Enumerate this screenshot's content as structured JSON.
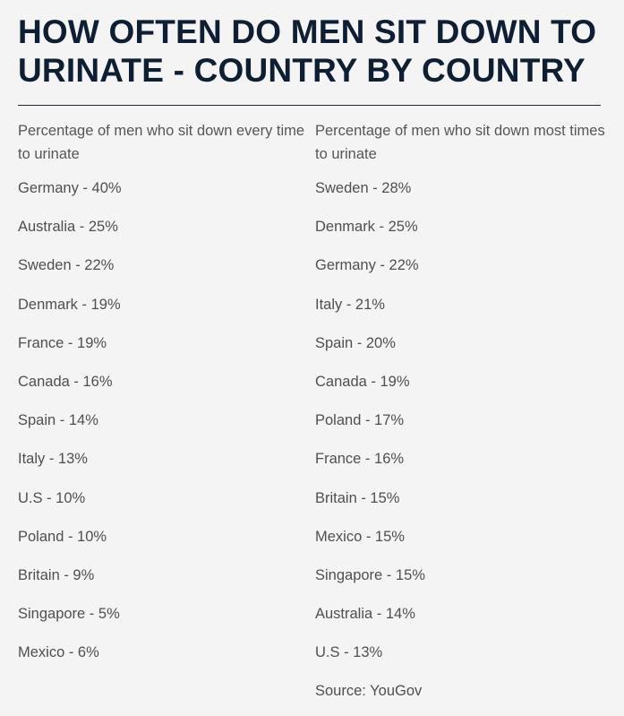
{
  "title": "HOW OFTEN DO MEN SIT DOWN TO URINATE - COUNTRY BY COUNTRY",
  "columns": [
    {
      "header": "Percentage of men who sit down every time to urinate",
      "rows": [
        "Germany - 40%",
        "Australia - 25%",
        "Sweden - 22%",
        "Denmark - 19%",
        "France - 19%",
        "Canada - 16%",
        "Spain - 14%",
        "Italy - 13%",
        "U.S - 10%",
        "Poland - 10%",
        "Britain - 9%",
        "Singapore - 5%",
        "Mexico - 6%"
      ]
    },
    {
      "header": "Percentage of men who sit down most times to urinate",
      "rows": [
        "Sweden - 28%",
        "Denmark - 25%",
        "Germany - 22%",
        "Italy - 21%",
        "Spain - 20%",
        "Canada - 19%",
        "Poland - 17%",
        "France - 16%",
        "Britain - 15%",
        "Mexico - 15%",
        "Singapore - 15%",
        "Australia - 14%",
        "U.S - 13%"
      ]
    }
  ],
  "source": "Source: YouGov"
}
